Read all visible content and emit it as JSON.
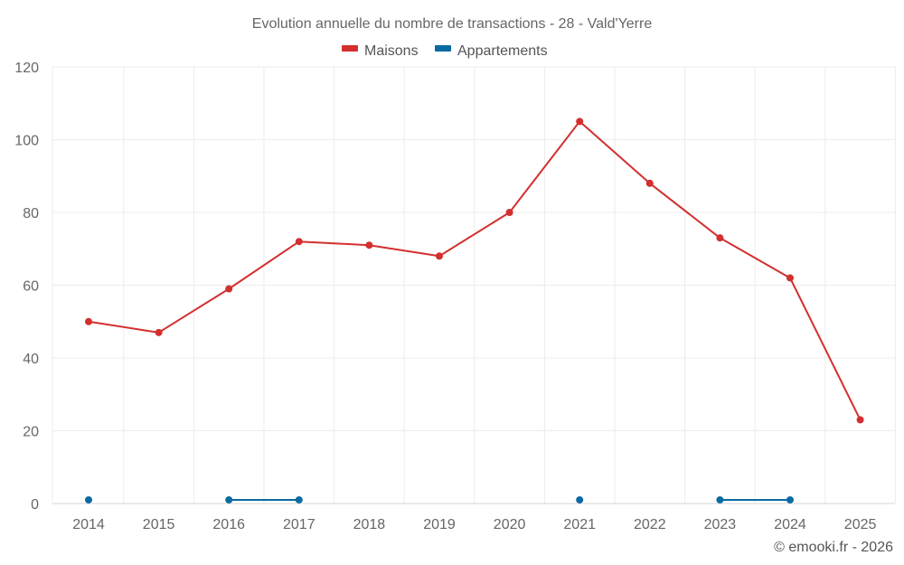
{
  "chart_data": {
    "type": "line",
    "title": "Evolution annuelle du nombre de transactions - 28 - Vald'Yerre",
    "categories": [
      "2014",
      "2015",
      "2016",
      "2017",
      "2018",
      "2019",
      "2020",
      "2021",
      "2022",
      "2023",
      "2024",
      "2025"
    ],
    "series": [
      {
        "name": "Maisons",
        "color": "#d32f2f",
        "values": [
          50,
          47,
          59,
          72,
          71,
          68,
          80,
          105,
          88,
          73,
          62,
          23
        ]
      },
      {
        "name": "Appartements",
        "color": "#0b6aa2",
        "values": [
          1,
          null,
          1,
          1,
          null,
          null,
          null,
          1,
          null,
          1,
          1,
          null
        ]
      }
    ],
    "ylim": [
      0,
      120
    ],
    "yticks": [
      0,
      20,
      40,
      60,
      80,
      100,
      120
    ],
    "xlabel": "",
    "ylabel": "",
    "grid": true,
    "legend_position": "top-center"
  },
  "credit": "© emooki.fr - 2026"
}
